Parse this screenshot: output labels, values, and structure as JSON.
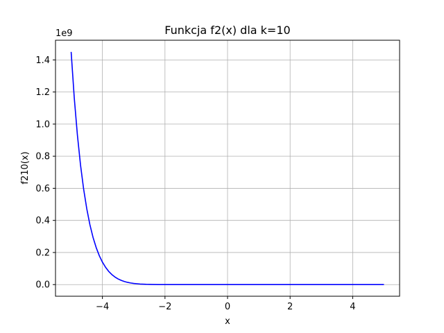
{
  "chart_data": {
    "type": "line",
    "title": "Funkcja f2(x) dla k=10",
    "xlabel": "x",
    "ylabel": "f210(x)",
    "offset_text": "1e9",
    "xlim": [
      -5.5,
      5.5
    ],
    "ylim": [
      -0.0725,
      1.5225
    ],
    "scale": 1000000000,
    "xticks": [
      -4,
      -2,
      0,
      2,
      4
    ],
    "xtick_labels": [
      "−4",
      "−2",
      "0",
      "2",
      "4"
    ],
    "yticks": [
      0.0,
      0.2,
      0.4,
      0.6,
      0.8,
      1.0,
      1.2,
      1.4
    ],
    "ytick_labels": [
      "0.0",
      "0.2",
      "0.4",
      "0.6",
      "0.8",
      "1.0",
      "1.2",
      "1.4"
    ],
    "grid": true,
    "series": [
      {
        "color": "#0000ff",
        "x": [
          -5.0,
          -4.9,
          -4.8,
          -4.7,
          -4.6,
          -4.5,
          -4.4,
          -4.3,
          -4.2,
          -4.1,
          -4.0,
          -3.9,
          -3.8,
          -3.7,
          -3.6,
          -3.5,
          -3.4,
          -3.3,
          -3.2,
          -3.1,
          -3.0,
          -2.8,
          -2.6,
          -2.4,
          -2.2,
          -2.0,
          -1.0,
          0.0,
          1.0,
          2.0,
          3.0,
          4.0,
          5.0
        ],
        "values": [
          1.45,
          1.163,
          0.932,
          0.745,
          0.594,
          0.472,
          0.373,
          0.294,
          0.231,
          0.18,
          0.14,
          0.108,
          0.0825,
          0.0627,
          0.0473,
          0.0354,
          0.0263,
          0.0193,
          0.0141,
          0.0102,
          0.0073,
          0.0036,
          0.0017,
          0.0008,
          0.0003,
          0.0001,
          0.0,
          0.0,
          0.0,
          0.0,
          0.0,
          0.0,
          0.0
        ]
      }
    ]
  }
}
